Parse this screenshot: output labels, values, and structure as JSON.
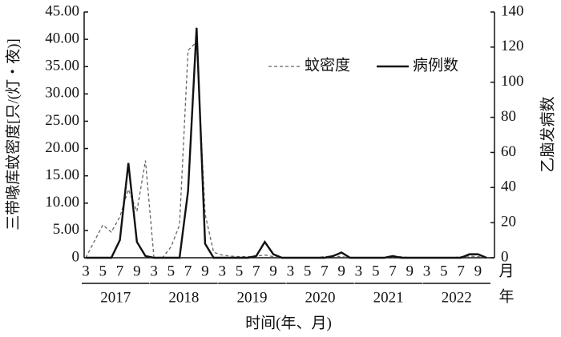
{
  "chart_data": {
    "type": "line",
    "y_label": "三带喙库蚊密度[只/(灯・夜)]",
    "y2_label": "乙脑发病数",
    "x_label": "时间(年、月)",
    "month_unit": "月",
    "year_unit": "年",
    "years": [
      "2017",
      "2018",
      "2019",
      "2020",
      "2021",
      "2022"
    ],
    "categories": [
      "3",
      null,
      "5",
      null,
      "7",
      null,
      "9",
      null,
      "3",
      null,
      "5",
      null,
      "7",
      null,
      "9",
      null,
      "3",
      null,
      "5",
      null,
      "7",
      null,
      "9",
      null,
      "3",
      null,
      "5",
      null,
      "7",
      null,
      "9",
      null,
      "3",
      null,
      "5",
      null,
      "7",
      null,
      "9",
      null,
      "3",
      null,
      "5",
      null,
      "7",
      null,
      "9",
      null
    ],
    "series": [
      {
        "name": "蚊密度",
        "color": "#666666",
        "dashed": true,
        "axis": "y",
        "values": [
          0,
          3,
          6,
          4.7,
          7.5,
          12.5,
          8.5,
          17.8,
          0,
          0,
          2,
          6,
          38,
          39.5,
          8,
          1,
          0.5,
          0.3,
          0.2,
          0.2,
          0.3,
          0.5,
          0.2,
          0,
          0,
          0,
          0,
          0,
          0.2,
          0.3,
          0.2,
          0,
          0,
          0,
          0,
          0,
          0.2,
          0.2,
          0,
          0,
          0,
          0,
          0,
          0,
          0.2,
          0.3,
          0.2,
          0
        ]
      },
      {
        "name": "病例数",
        "color": "#111111",
        "dashed": false,
        "axis": "y2",
        "values": [
          0,
          0,
          0,
          0,
          10,
          54,
          9,
          1,
          0,
          0,
          0,
          0,
          38,
          131,
          8,
          0,
          0,
          0,
          0,
          0,
          1,
          9,
          2,
          0,
          0,
          0,
          0,
          0,
          0,
          1,
          3,
          0,
          0,
          0,
          0,
          0,
          1,
          0,
          0,
          0,
          0,
          0,
          0,
          0,
          0,
          2,
          2,
          0
        ]
      }
    ],
    "ylim": [
      0,
      45
    ],
    "yticks": [
      0,
      {
        "value": 5,
        "label": "5.00"
      },
      {
        "value": 10,
        "label": "10.00"
      },
      {
        "value": 15,
        "label": "15.00"
      },
      {
        "value": 20,
        "label": "20.00"
      },
      {
        "value": 25,
        "label": "25.00"
      },
      {
        "value": 30,
        "label": "30.00"
      },
      {
        "value": 35,
        "label": "35.00"
      },
      {
        "value": 40,
        "label": "40.00"
      },
      {
        "value": 45,
        "label": "45.00"
      }
    ],
    "y2lim": [
      0,
      140
    ],
    "y2ticks": [
      0,
      20,
      40,
      60,
      80,
      100,
      120,
      140
    ],
    "grid": false
  }
}
